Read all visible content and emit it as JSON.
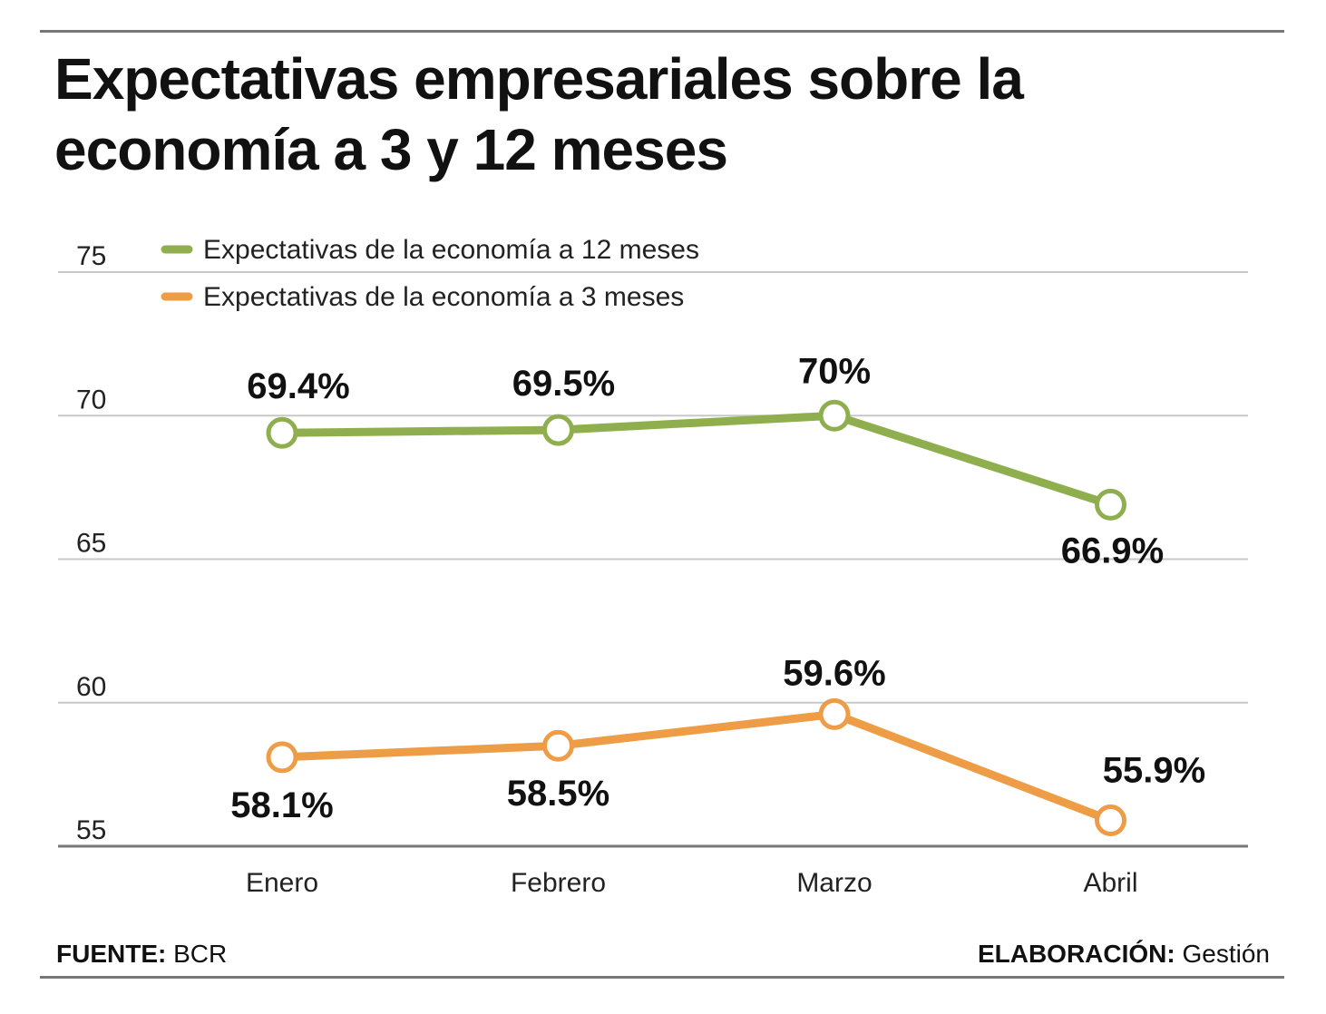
{
  "title": "Expectativas empresariales sobre la economía a 3 y 12 meses",
  "footer": {
    "source_label": "FUENTE:",
    "source_value": "BCR",
    "credit_label": "ELABORACIÓN:",
    "credit_value": "Gestión"
  },
  "colors": {
    "series_12": "#8faf4f",
    "series_3": "#ee9c45",
    "grid": "#c8c8c8",
    "axis": "#777777"
  },
  "chart_data": {
    "type": "line",
    "title": "Expectativas empresariales sobre la economía a 3 y 12 meses",
    "xlabel": "",
    "ylabel": "",
    "categories": [
      "Enero",
      "Febrero",
      "Marzo",
      "Abril"
    ],
    "ylim": [
      55,
      75
    ],
    "yticks": [
      55,
      60,
      65,
      70,
      75
    ],
    "grid": true,
    "legend": "top-left",
    "series": [
      {
        "name": "Expectativas de la economía a 12 meses",
        "values": [
          69.4,
          69.5,
          70,
          66.9
        ],
        "labels": [
          "69.4%",
          "69.5%",
          "70%",
          "66.9%"
        ]
      },
      {
        "name": "Expectativas de la economía a 3 meses",
        "values": [
          58.1,
          58.5,
          59.6,
          55.9
        ],
        "labels": [
          "58.1%",
          "58.5%",
          "59.6%",
          "55.9%"
        ]
      }
    ]
  }
}
